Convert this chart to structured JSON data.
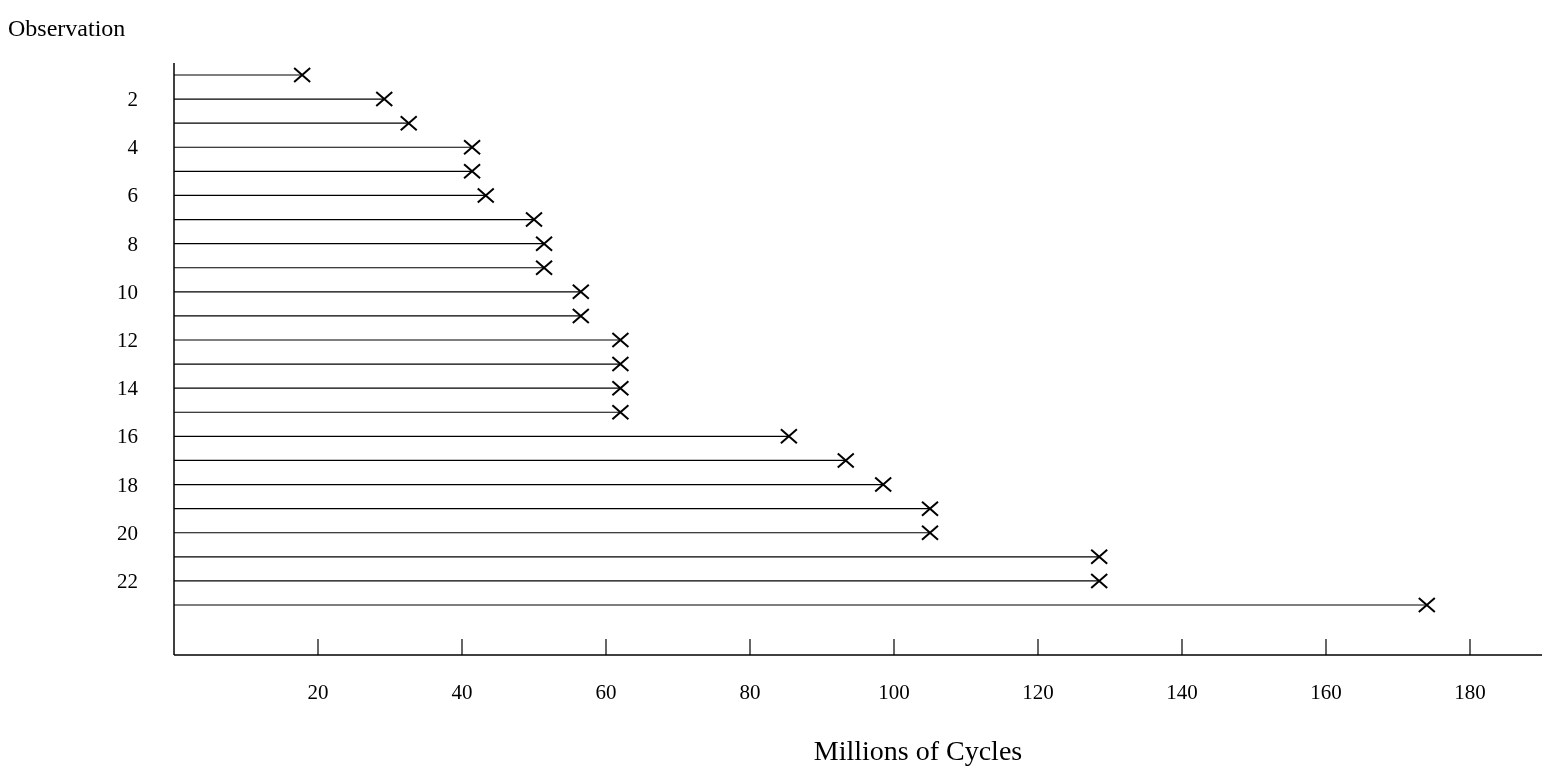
{
  "chart_data": {
    "type": "lollipop",
    "orientation": "horizontal",
    "marker": "cross",
    "color": "#000000",
    "ylabel": "Observation",
    "xlabel": "Millions of Cycles",
    "categories": [
      null,
      "2",
      null,
      "4",
      null,
      "6",
      null,
      "8",
      null,
      "10",
      null,
      "12",
      null,
      "14",
      null,
      "16",
      null,
      "18",
      null,
      "20",
      null,
      "22",
      null
    ],
    "values": [
      17.8,
      29.2,
      32.6,
      41.4,
      41.4,
      43.3,
      50,
      51.4,
      51.4,
      56.5,
      56.5,
      62,
      62,
      62,
      62,
      85.4,
      93.3,
      98.5,
      105,
      105,
      128.5,
      128.5,
      174
    ],
    "xlim": [
      0,
      190
    ],
    "xticks": [
      20,
      40,
      60,
      80,
      100,
      120,
      140,
      160,
      180
    ],
    "grid": false
  }
}
